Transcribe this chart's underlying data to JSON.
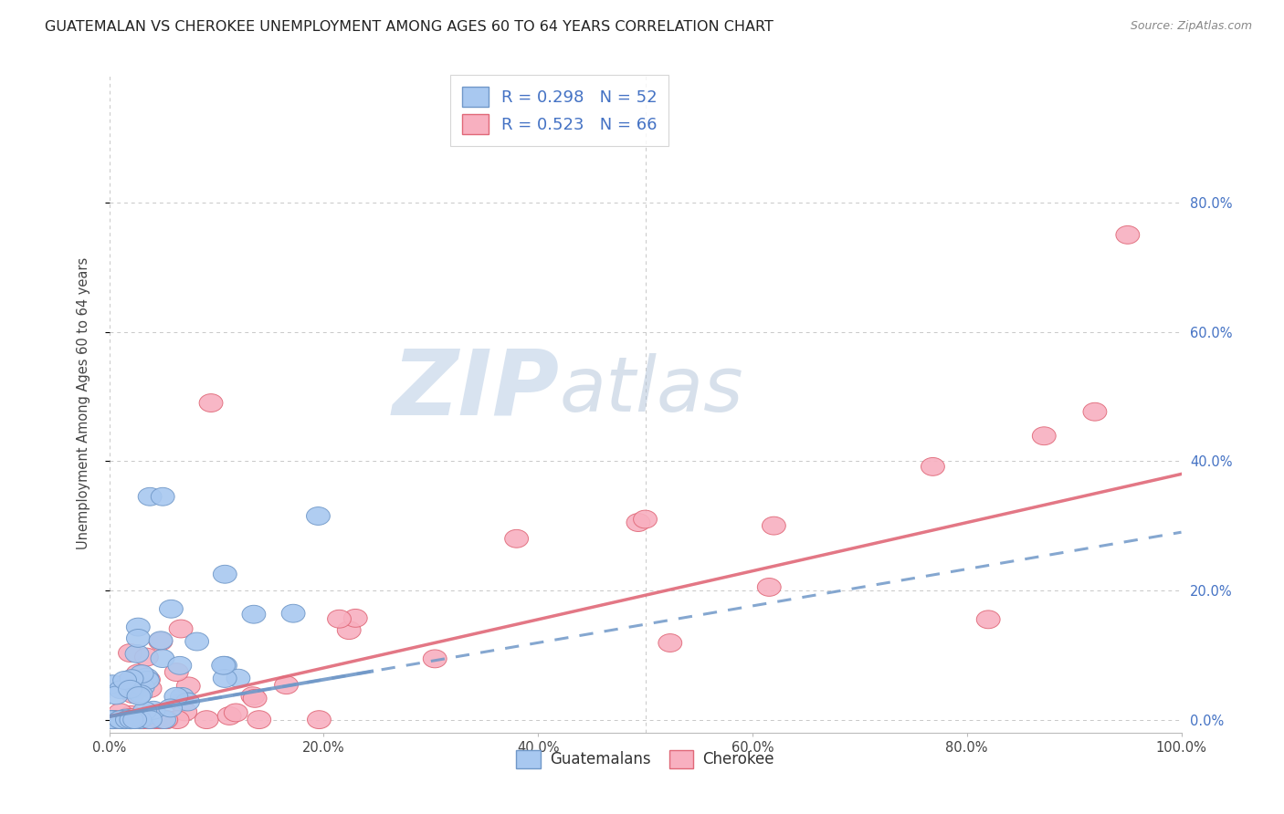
{
  "title": "GUATEMALAN VS CHEROKEE UNEMPLOYMENT AMONG AGES 60 TO 64 YEARS CORRELATION CHART",
  "source": "Source: ZipAtlas.com",
  "ylabel": "Unemployment Among Ages 60 to 64 years",
  "xlim": [
    0,
    1.0
  ],
  "ylim": [
    -0.02,
    1.0
  ],
  "xtick_vals": [
    0.0,
    0.2,
    0.4,
    0.6,
    0.8,
    1.0
  ],
  "ytick_vals": [
    0.0,
    0.2,
    0.4,
    0.6,
    0.8
  ],
  "guatemalan_color": "#A8C8F0",
  "cherokee_color": "#F8B0C0",
  "guatemalan_edge": "#7098C8",
  "cherokee_edge": "#E06878",
  "R_guatemalan": 0.298,
  "N_guatemalan": 52,
  "R_cherokee": 0.523,
  "N_cherokee": 66,
  "legend_label_guatemalan": "Guatemalans",
  "legend_label_cherokee": "Cherokee",
  "watermark_zip": "ZIP",
  "watermark_atlas": "atlas",
  "watermark_color_zip": "#C0D0E8",
  "watermark_color_atlas": "#B8C8D8",
  "right_tick_color": "#4472C4",
  "grid_color": "#C8C8C8",
  "title_color": "#222222",
  "source_color": "#888888",
  "ylabel_color": "#444444"
}
